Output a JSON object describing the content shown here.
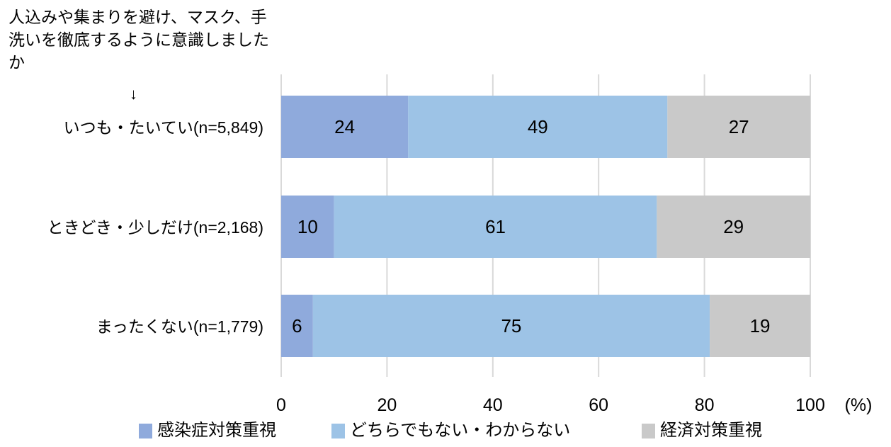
{
  "chart_data": {
    "type": "bar",
    "orientation": "horizontal",
    "stacked": true,
    "title": "人込みや集まりを避け、マスク、手洗いを徹底するように意識しましたか",
    "arrow": "↓",
    "categories": [
      "いつも・たいてい(n=5,849)",
      "ときどき・少しだけ(n=2,168)",
      "まったくない(n=1,779)"
    ],
    "series": [
      {
        "name": "感染症対策重視",
        "color": "#8faadc",
        "values": [
          24,
          10,
          6
        ]
      },
      {
        "name": "どちらでもない・わからない",
        "color": "#9dc3e6",
        "values": [
          49,
          61,
          75
        ]
      },
      {
        "name": "経済対策重視",
        "color": "#c9c9c9",
        "values": [
          27,
          29,
          19
        ]
      }
    ],
    "xlim": [
      0,
      100
    ],
    "xticks": [
      "0",
      "20",
      "40",
      "60",
      "80",
      "100"
    ],
    "xunit": "(%)",
    "grid": true,
    "legend_position": "bottom"
  }
}
